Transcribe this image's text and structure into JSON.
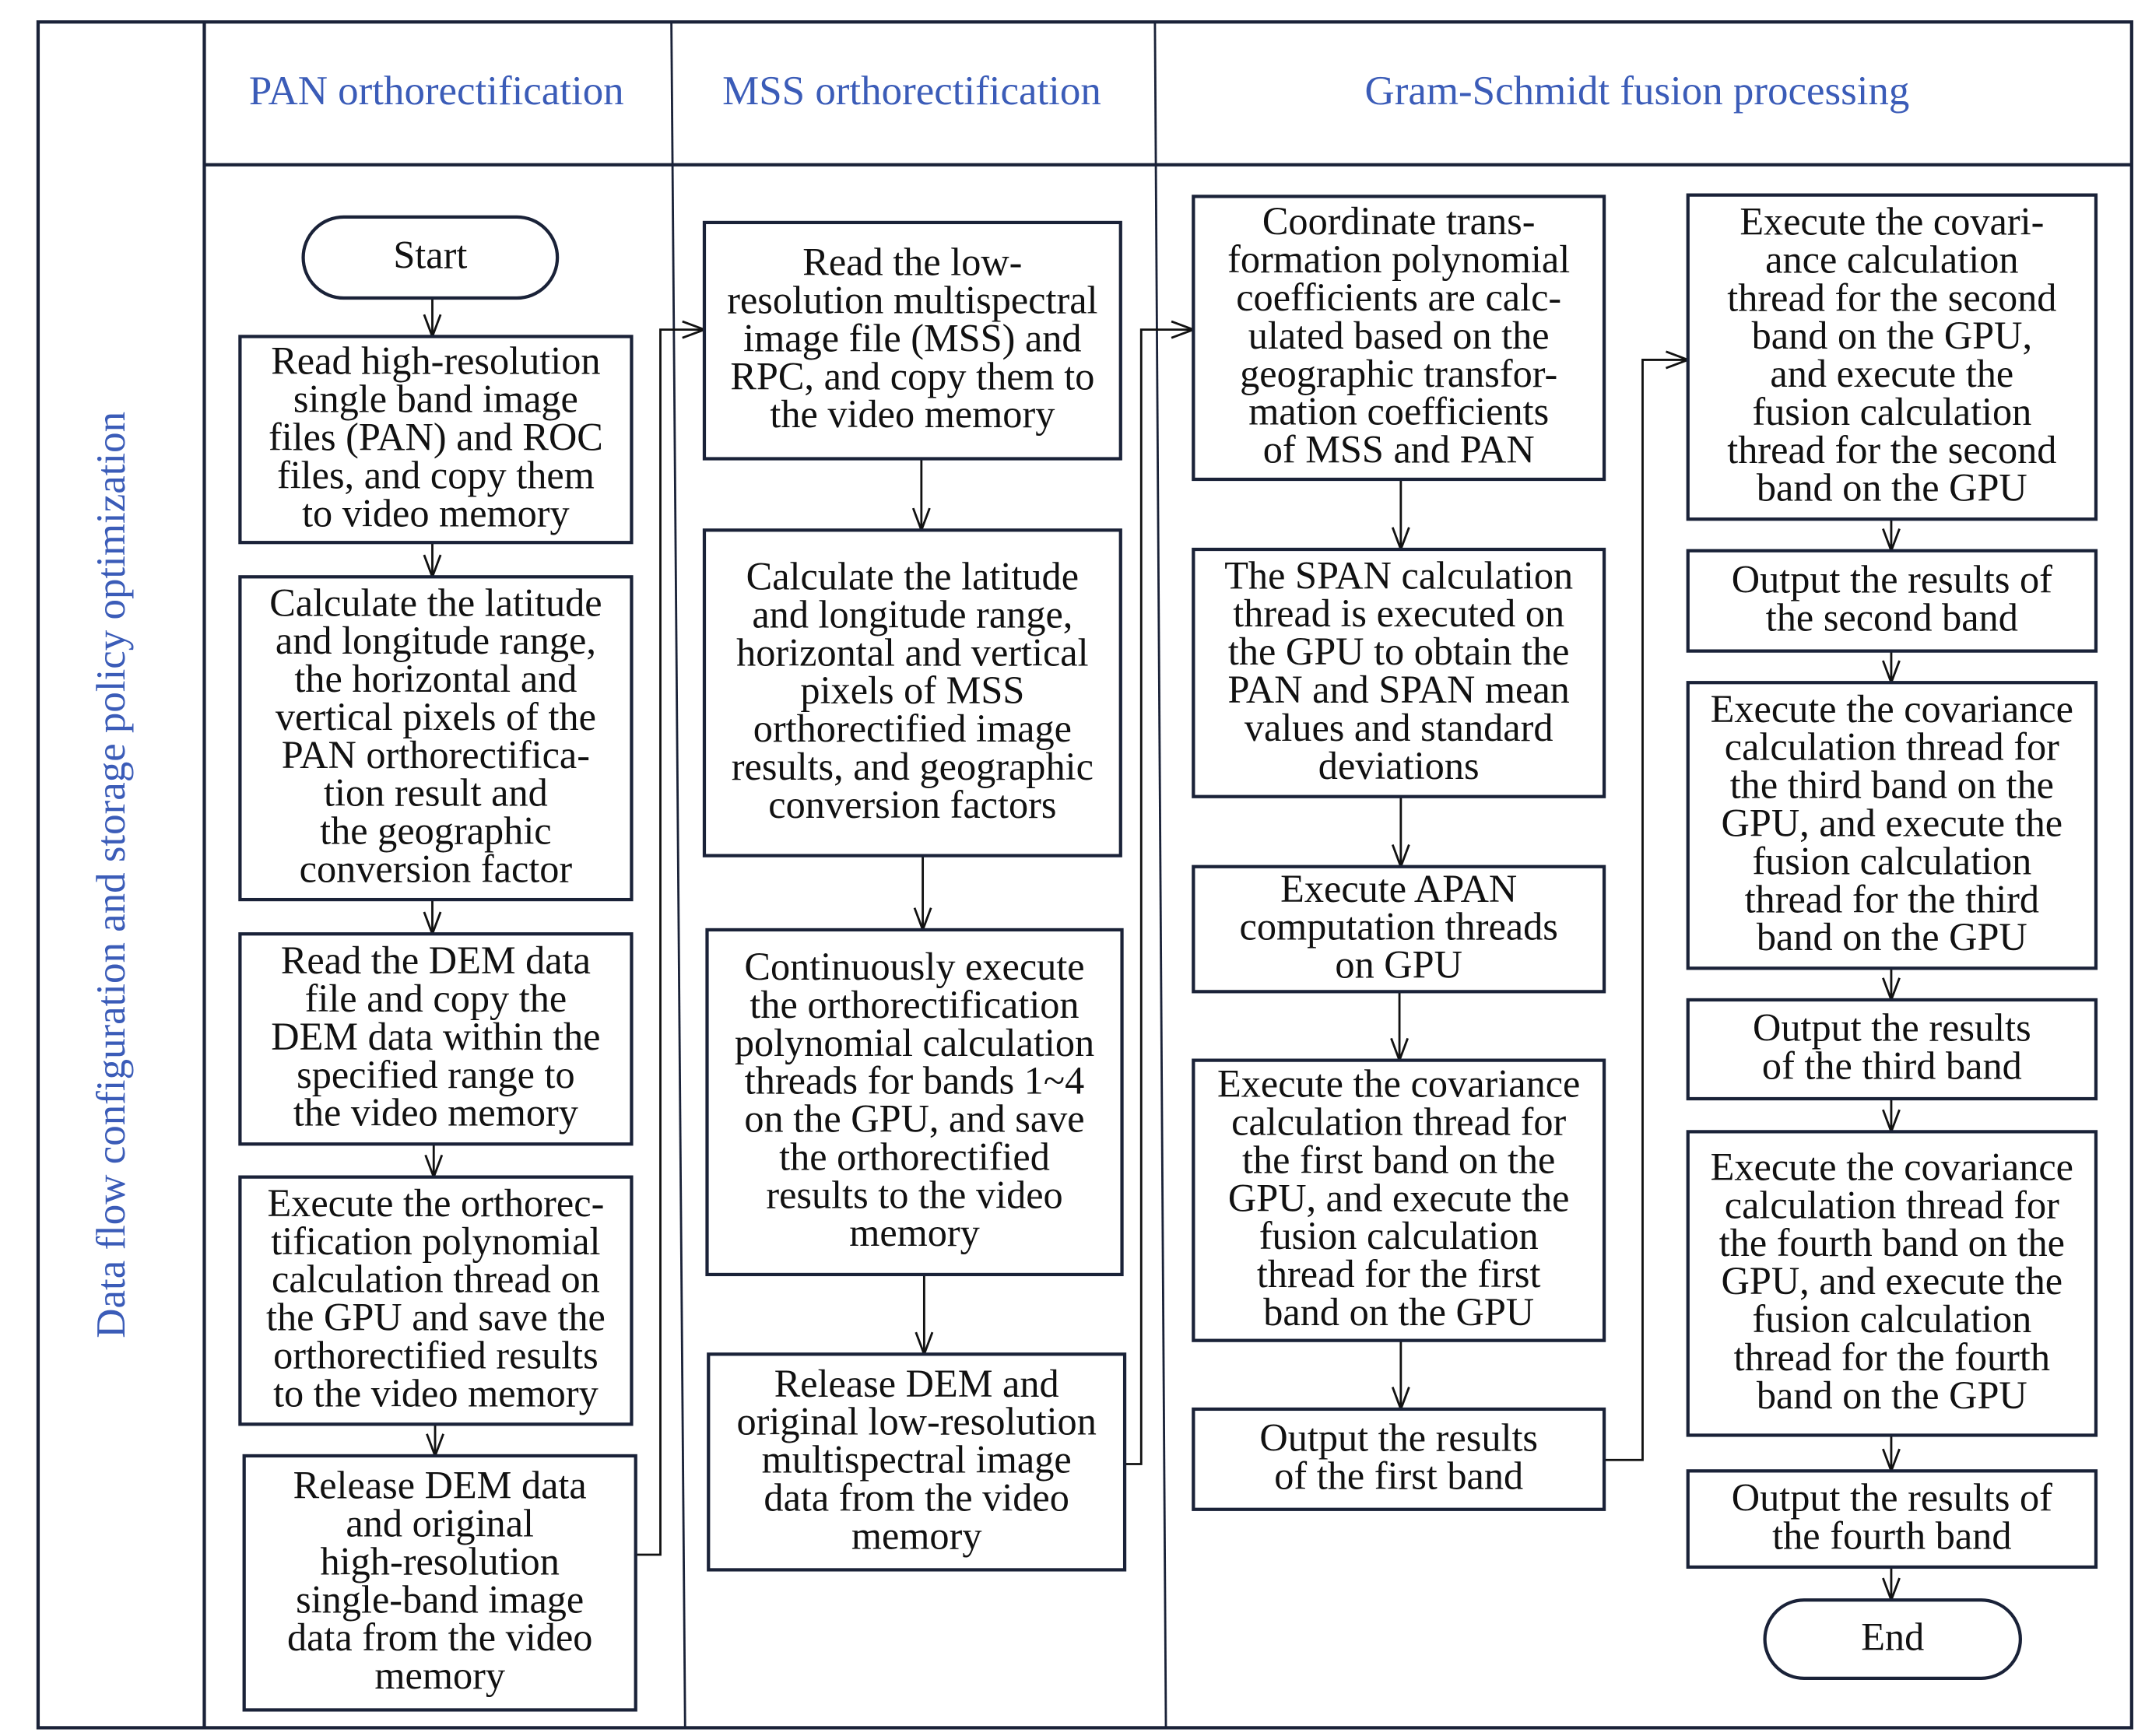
{
  "colors": {
    "header_text": "#3b5cb8",
    "border": "#1a2238",
    "text": "#111111"
  },
  "side_label": "Data flow configuration and storage policy optimization",
  "lanes": [
    {
      "title": "PAN orthorectification"
    },
    {
      "title": "MSS orthorectification"
    },
    {
      "title": "Gram-Schmidt fusion processing"
    }
  ],
  "nodes": {
    "start": {
      "shape": "terminator",
      "lines": [
        "Start"
      ]
    },
    "pan1": {
      "lines": [
        "Read high-resolution",
        "single band image",
        "files (PAN) and ROC",
        "files, and copy them",
        "to video memory"
      ]
    },
    "pan2": {
      "lines": [
        "Calculate the latitude",
        "and longitude range,",
        "the horizontal and",
        "vertical pixels of the",
        "PAN orthorectifica-",
        "tion result and",
        "the geographic",
        "conversion factor"
      ]
    },
    "pan3": {
      "lines": [
        "Read the DEM data",
        "file and copy the",
        "DEM data within the",
        "specified range to",
        "the video memory"
      ]
    },
    "pan4": {
      "lines": [
        "Execute the orthorec-",
        "tification polynomial",
        "calculation thread on",
        "the GPU and save the",
        "orthorectified results",
        "to the video memory"
      ]
    },
    "pan5": {
      "lines": [
        "Release DEM data",
        "and original",
        "high-resolution",
        "single-band image",
        "data from the video",
        "memory"
      ]
    },
    "mss1": {
      "lines": [
        "Read the low-",
        "resolution multispectral",
        "image file (MSS) and",
        "RPC, and copy them to",
        "the video memory"
      ]
    },
    "mss2": {
      "lines": [
        "Calculate the latitude",
        "and longitude range,",
        "horizontal and vertical",
        "pixels of MSS",
        "orthorectified image",
        "results, and geographic",
        "conversion factors"
      ]
    },
    "mss3": {
      "lines": [
        "Continuously execute",
        "the orthorectification",
        "polynomial calculation",
        "threads for bands 1~4",
        "on the GPU, and save",
        "the orthorectified",
        "results to the video",
        "memory"
      ]
    },
    "mss4": {
      "lines": [
        "Release DEM and",
        "original low-resolution",
        "multispectral image",
        "data from the video",
        "memory"
      ]
    },
    "gs1": {
      "lines": [
        "Coordinate trans-",
        "formation polynomial",
        "coefficients are calc-",
        "ulated based on the",
        "geographic transfor-",
        "mation coefficients",
        "of MSS and PAN"
      ]
    },
    "gs2": {
      "lines": [
        "The SPAN calculation",
        "thread is executed on",
        "the GPU to obtain the",
        "PAN and SPAN mean",
        "values and standard",
        "deviations"
      ]
    },
    "gs3": {
      "lines": [
        "Execute APAN",
        "computation threads",
        "on GPU"
      ]
    },
    "gs4": {
      "lines": [
        "Execute the covariance",
        "calculation thread for",
        "the first band on the",
        "GPU, and execute the",
        "fusion calculation",
        "thread for the first",
        "band on the GPU"
      ]
    },
    "gs5": {
      "lines": [
        "Output the results",
        "of the first band"
      ]
    },
    "gs6": {
      "lines": [
        "Execute the covari-",
        "ance calculation",
        "thread for the second",
        "band on the GPU,",
        "and execute the",
        "fusion calculation",
        "thread for the second",
        "band on the GPU"
      ]
    },
    "gs7": {
      "lines": [
        "Output the results of",
        "the second band"
      ]
    },
    "gs8": {
      "lines": [
        "Execute the covariance",
        "calculation thread for",
        "the third band on the",
        "GPU, and execute the",
        "fusion calculation",
        "thread for the third",
        "band on the GPU"
      ]
    },
    "gs9": {
      "lines": [
        "Output the results",
        "of the third band"
      ]
    },
    "gs10": {
      "lines": [
        "Execute the covariance",
        "calculation thread for",
        "the fourth band on the",
        "GPU, and execute the",
        "fusion calculation",
        "thread for the fourth",
        "band on the GPU"
      ]
    },
    "gs11": {
      "lines": [
        "Output the results of",
        "the fourth band"
      ]
    },
    "end": {
      "shape": "terminator",
      "lines": [
        "End"
      ]
    }
  }
}
